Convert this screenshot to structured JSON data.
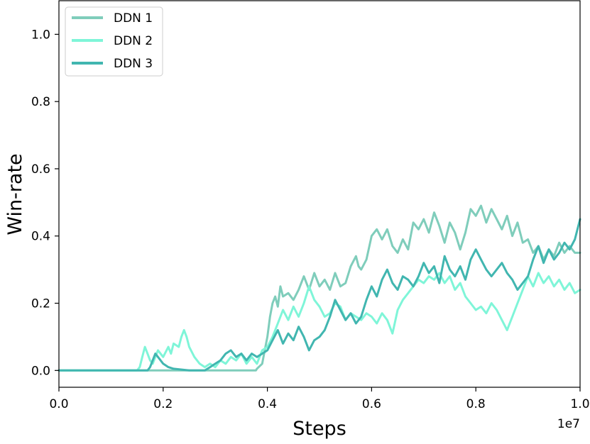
{
  "chart_data": {
    "type": "line",
    "title": "",
    "xlabel": "Steps",
    "ylabel": "Win-rate",
    "x_offset_label": "1e7",
    "xlim": [
      0.0,
      1.0
    ],
    "ylim": [
      -0.05,
      1.1
    ],
    "xticks": [
      0.0,
      0.2,
      0.4,
      0.6,
      0.8,
      1.0
    ],
    "xtick_labels": [
      "0.0",
      "0.2",
      "0.4",
      "0.6",
      "0.8",
      "1.0"
    ],
    "yticks": [
      0.0,
      0.2,
      0.4,
      0.6,
      0.8,
      1.0
    ],
    "ytick_labels": [
      "0.0",
      "0.2",
      "0.4",
      "0.6",
      "0.8",
      "1.0"
    ],
    "grid": false,
    "legend_position": "top-left",
    "series": [
      {
        "name": "DDN 1",
        "color": "#7fcdbb",
        "width": 3,
        "points": [
          [
            0.0,
            0.0
          ],
          [
            0.1,
            0.0
          ],
          [
            0.2,
            0.0
          ],
          [
            0.3,
            0.0
          ],
          [
            0.378,
            0.0
          ],
          [
            0.38,
            0.005
          ],
          [
            0.39,
            0.02
          ],
          [
            0.395,
            0.06
          ],
          [
            0.4,
            0.1
          ],
          [
            0.405,
            0.16
          ],
          [
            0.41,
            0.2
          ],
          [
            0.415,
            0.22
          ],
          [
            0.42,
            0.19
          ],
          [
            0.425,
            0.25
          ],
          [
            0.43,
            0.22
          ],
          [
            0.44,
            0.23
          ],
          [
            0.45,
            0.21
          ],
          [
            0.46,
            0.24
          ],
          [
            0.47,
            0.28
          ],
          [
            0.48,
            0.24
          ],
          [
            0.49,
            0.29
          ],
          [
            0.5,
            0.25
          ],
          [
            0.51,
            0.27
          ],
          [
            0.52,
            0.24
          ],
          [
            0.53,
            0.29
          ],
          [
            0.54,
            0.25
          ],
          [
            0.55,
            0.26
          ],
          [
            0.56,
            0.31
          ],
          [
            0.57,
            0.34
          ],
          [
            0.575,
            0.31
          ],
          [
            0.58,
            0.3
          ],
          [
            0.59,
            0.33
          ],
          [
            0.6,
            0.4
          ],
          [
            0.61,
            0.42
          ],
          [
            0.62,
            0.39
          ],
          [
            0.63,
            0.42
          ],
          [
            0.64,
            0.37
          ],
          [
            0.65,
            0.35
          ],
          [
            0.66,
            0.39
          ],
          [
            0.67,
            0.36
          ],
          [
            0.68,
            0.44
          ],
          [
            0.69,
            0.42
          ],
          [
            0.7,
            0.45
          ],
          [
            0.71,
            0.41
          ],
          [
            0.72,
            0.47
          ],
          [
            0.73,
            0.43
          ],
          [
            0.74,
            0.38
          ],
          [
            0.75,
            0.44
          ],
          [
            0.76,
            0.41
          ],
          [
            0.77,
            0.36
          ],
          [
            0.78,
            0.41
          ],
          [
            0.79,
            0.48
          ],
          [
            0.8,
            0.46
          ],
          [
            0.81,
            0.49
          ],
          [
            0.82,
            0.44
          ],
          [
            0.83,
            0.48
          ],
          [
            0.84,
            0.45
          ],
          [
            0.85,
            0.42
          ],
          [
            0.86,
            0.46
          ],
          [
            0.87,
            0.4
          ],
          [
            0.88,
            0.44
          ],
          [
            0.89,
            0.38
          ],
          [
            0.9,
            0.39
          ],
          [
            0.91,
            0.35
          ],
          [
            0.92,
            0.37
          ],
          [
            0.93,
            0.33
          ],
          [
            0.94,
            0.36
          ],
          [
            0.95,
            0.34
          ],
          [
            0.96,
            0.38
          ],
          [
            0.97,
            0.35
          ],
          [
            0.98,
            0.37
          ],
          [
            0.99,
            0.35
          ],
          [
            1.0,
            0.35
          ]
        ]
      },
      {
        "name": "DDN 2",
        "color": "#7ff5d8",
        "width": 3,
        "points": [
          [
            0.0,
            0.0
          ],
          [
            0.1,
            0.0
          ],
          [
            0.15,
            0.0
          ],
          [
            0.155,
            0.01
          ],
          [
            0.16,
            0.04
          ],
          [
            0.165,
            0.07
          ],
          [
            0.17,
            0.05
          ],
          [
            0.175,
            0.03
          ],
          [
            0.18,
            0.02
          ],
          [
            0.185,
            0.04
          ],
          [
            0.19,
            0.06
          ],
          [
            0.2,
            0.04
          ],
          [
            0.21,
            0.07
          ],
          [
            0.215,
            0.05
          ],
          [
            0.22,
            0.08
          ],
          [
            0.23,
            0.07
          ],
          [
            0.235,
            0.1
          ],
          [
            0.24,
            0.12
          ],
          [
            0.245,
            0.1
          ],
          [
            0.25,
            0.07
          ],
          [
            0.26,
            0.04
          ],
          [
            0.27,
            0.02
          ],
          [
            0.28,
            0.01
          ],
          [
            0.29,
            0.02
          ],
          [
            0.3,
            0.01
          ],
          [
            0.31,
            0.03
          ],
          [
            0.32,
            0.02
          ],
          [
            0.33,
            0.04
          ],
          [
            0.34,
            0.03
          ],
          [
            0.35,
            0.05
          ],
          [
            0.36,
            0.02
          ],
          [
            0.37,
            0.04
          ],
          [
            0.38,
            0.02
          ],
          [
            0.39,
            0.06
          ],
          [
            0.4,
            0.07
          ],
          [
            0.41,
            0.1
          ],
          [
            0.42,
            0.14
          ],
          [
            0.43,
            0.18
          ],
          [
            0.44,
            0.15
          ],
          [
            0.45,
            0.19
          ],
          [
            0.46,
            0.16
          ],
          [
            0.47,
            0.2
          ],
          [
            0.48,
            0.25
          ],
          [
            0.49,
            0.21
          ],
          [
            0.5,
            0.19
          ],
          [
            0.51,
            0.16
          ],
          [
            0.52,
            0.17
          ],
          [
            0.53,
            0.2
          ],
          [
            0.54,
            0.19
          ],
          [
            0.55,
            0.15
          ],
          [
            0.56,
            0.17
          ],
          [
            0.57,
            0.16
          ],
          [
            0.58,
            0.15
          ],
          [
            0.59,
            0.17
          ],
          [
            0.6,
            0.16
          ],
          [
            0.61,
            0.14
          ],
          [
            0.62,
            0.17
          ],
          [
            0.63,
            0.15
          ],
          [
            0.64,
            0.11
          ],
          [
            0.65,
            0.18
          ],
          [
            0.66,
            0.21
          ],
          [
            0.67,
            0.23
          ],
          [
            0.68,
            0.25
          ],
          [
            0.69,
            0.27
          ],
          [
            0.7,
            0.26
          ],
          [
            0.71,
            0.28
          ],
          [
            0.72,
            0.27
          ],
          [
            0.73,
            0.29
          ],
          [
            0.74,
            0.26
          ],
          [
            0.75,
            0.28
          ],
          [
            0.76,
            0.24
          ],
          [
            0.77,
            0.26
          ],
          [
            0.78,
            0.22
          ],
          [
            0.79,
            0.2
          ],
          [
            0.8,
            0.18
          ],
          [
            0.81,
            0.19
          ],
          [
            0.82,
            0.17
          ],
          [
            0.83,
            0.2
          ],
          [
            0.84,
            0.18
          ],
          [
            0.85,
            0.15
          ],
          [
            0.86,
            0.12
          ],
          [
            0.87,
            0.16
          ],
          [
            0.88,
            0.2
          ],
          [
            0.89,
            0.24
          ],
          [
            0.9,
            0.28
          ],
          [
            0.91,
            0.25
          ],
          [
            0.92,
            0.29
          ],
          [
            0.93,
            0.26
          ],
          [
            0.94,
            0.28
          ],
          [
            0.95,
            0.25
          ],
          [
            0.96,
            0.27
          ],
          [
            0.97,
            0.24
          ],
          [
            0.98,
            0.26
          ],
          [
            0.99,
            0.23
          ],
          [
            1.0,
            0.24
          ]
        ]
      },
      {
        "name": "DDN 3",
        "color": "#41b6b0",
        "width": 3,
        "points": [
          [
            0.0,
            0.0
          ],
          [
            0.1,
            0.0
          ],
          [
            0.17,
            0.0
          ],
          [
            0.175,
            0.01
          ],
          [
            0.18,
            0.03
          ],
          [
            0.185,
            0.05
          ],
          [
            0.19,
            0.04
          ],
          [
            0.2,
            0.02
          ],
          [
            0.21,
            0.01
          ],
          [
            0.22,
            0.005
          ],
          [
            0.25,
            0.0
          ],
          [
            0.28,
            0.0
          ],
          [
            0.29,
            0.01
          ],
          [
            0.3,
            0.02
          ],
          [
            0.31,
            0.03
          ],
          [
            0.32,
            0.05
          ],
          [
            0.33,
            0.06
          ],
          [
            0.34,
            0.04
          ],
          [
            0.35,
            0.05
          ],
          [
            0.36,
            0.03
          ],
          [
            0.37,
            0.05
          ],
          [
            0.38,
            0.04
          ],
          [
            0.39,
            0.05
          ],
          [
            0.4,
            0.06
          ],
          [
            0.41,
            0.09
          ],
          [
            0.42,
            0.12
          ],
          [
            0.43,
            0.08
          ],
          [
            0.44,
            0.11
          ],
          [
            0.45,
            0.09
          ],
          [
            0.46,
            0.13
          ],
          [
            0.47,
            0.1
          ],
          [
            0.48,
            0.06
          ],
          [
            0.49,
            0.09
          ],
          [
            0.5,
            0.1
          ],
          [
            0.51,
            0.12
          ],
          [
            0.52,
            0.16
          ],
          [
            0.53,
            0.21
          ],
          [
            0.54,
            0.18
          ],
          [
            0.55,
            0.15
          ],
          [
            0.56,
            0.17
          ],
          [
            0.57,
            0.14
          ],
          [
            0.58,
            0.16
          ],
          [
            0.59,
            0.21
          ],
          [
            0.6,
            0.25
          ],
          [
            0.61,
            0.22
          ],
          [
            0.62,
            0.27
          ],
          [
            0.63,
            0.3
          ],
          [
            0.64,
            0.26
          ],
          [
            0.65,
            0.24
          ],
          [
            0.66,
            0.28
          ],
          [
            0.67,
            0.27
          ],
          [
            0.68,
            0.25
          ],
          [
            0.69,
            0.28
          ],
          [
            0.7,
            0.32
          ],
          [
            0.71,
            0.29
          ],
          [
            0.72,
            0.31
          ],
          [
            0.73,
            0.26
          ],
          [
            0.74,
            0.34
          ],
          [
            0.75,
            0.3
          ],
          [
            0.76,
            0.28
          ],
          [
            0.77,
            0.31
          ],
          [
            0.78,
            0.27
          ],
          [
            0.79,
            0.33
          ],
          [
            0.8,
            0.36
          ],
          [
            0.81,
            0.33
          ],
          [
            0.82,
            0.3
          ],
          [
            0.83,
            0.28
          ],
          [
            0.84,
            0.3
          ],
          [
            0.85,
            0.32
          ],
          [
            0.86,
            0.29
          ],
          [
            0.87,
            0.27
          ],
          [
            0.88,
            0.24
          ],
          [
            0.89,
            0.26
          ],
          [
            0.9,
            0.28
          ],
          [
            0.91,
            0.33
          ],
          [
            0.92,
            0.37
          ],
          [
            0.93,
            0.32
          ],
          [
            0.94,
            0.36
          ],
          [
            0.95,
            0.33
          ],
          [
            0.96,
            0.35
          ],
          [
            0.97,
            0.38
          ],
          [
            0.98,
            0.36
          ],
          [
            0.99,
            0.39
          ],
          [
            1.0,
            0.45
          ]
        ]
      }
    ]
  }
}
